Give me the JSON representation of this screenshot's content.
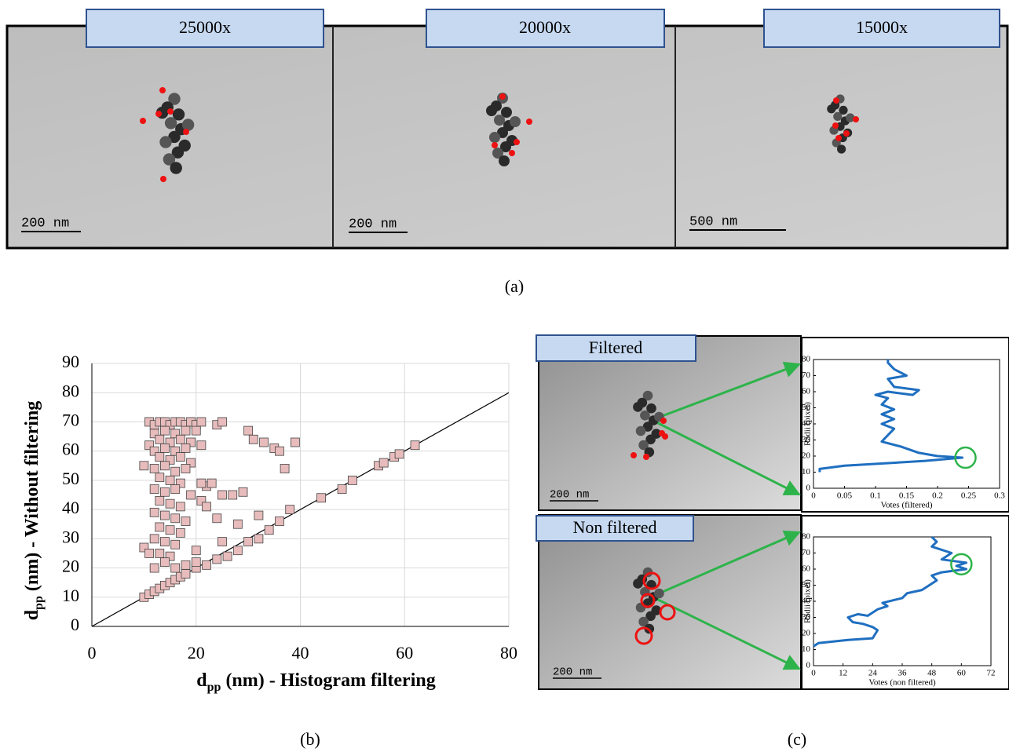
{
  "panel_a": {
    "images": [
      {
        "magnification": "25000x",
        "scale_bar": "200 nm"
      },
      {
        "magnification": "20000x",
        "scale_bar": "200 nm"
      },
      {
        "magnification": "15000x",
        "scale_bar": "500 nm"
      }
    ],
    "caption": "(a)"
  },
  "panel_b": {
    "caption": "(b)"
  },
  "panel_c": {
    "images": [
      {
        "label": "Filtered",
        "scale_bar": "200 nm"
      },
      {
        "label": "Non filtered",
        "scale_bar": "200 nm"
      }
    ],
    "caption": "(c)"
  },
  "chart_data": [
    {
      "type": "scatter",
      "x_label": {
        "symbol": "d",
        "subscript": "pp",
        "text": " (nm) - Histogram filtering"
      },
      "y_label": {
        "symbol": "d",
        "subscript": "pp",
        "text": " (nm) - Without filtering"
      },
      "xlim": [
        0,
        80
      ],
      "ylim": [
        0,
        90
      ],
      "xticks": [
        0,
        20,
        40,
        60,
        80
      ],
      "yticks": [
        0,
        10,
        20,
        30,
        40,
        50,
        60,
        70,
        80,
        90
      ],
      "grid": true,
      "identity_line": true,
      "series": [
        {
          "color": "#e8bcbc",
          "x": [
            10,
            11,
            12,
            13,
            14,
            15,
            16,
            17,
            18,
            20,
            22,
            24,
            26,
            28,
            30,
            32,
            34,
            36,
            38,
            44,
            48,
            50,
            55,
            56,
            58,
            59,
            62,
            30,
            31,
            33,
            35,
            36,
            39,
            37,
            27,
            29,
            25,
            32,
            28,
            21,
            22,
            23,
            22,
            10,
            11,
            24,
            20,
            25,
            11,
            12,
            13,
            14,
            15,
            16,
            17,
            18,
            19,
            20,
            21,
            24,
            25,
            12,
            14,
            16,
            18,
            20,
            13,
            15,
            17,
            19,
            11,
            12,
            14,
            16,
            18,
            21,
            13,
            15,
            17,
            19,
            10,
            12,
            14,
            16,
            18,
            21,
            13,
            15,
            17,
            12,
            14,
            16,
            19,
            13,
            15,
            17,
            12,
            14,
            16,
            18,
            13,
            15,
            17,
            12,
            14,
            16,
            13,
            15,
            14,
            16,
            18,
            12,
            20
          ],
          "values": [
            10,
            11,
            12,
            13,
            14,
            15,
            16,
            17,
            18,
            20,
            21,
            23,
            24,
            26,
            29,
            30,
            33,
            36,
            40,
            44,
            47,
            50,
            55,
            56,
            58,
            59,
            62,
            67,
            64,
            63,
            61,
            60,
            63,
            54,
            45,
            46,
            45,
            38,
            35,
            43,
            48,
            49,
            41,
            27,
            25,
            37,
            26,
            29,
            70,
            69,
            70,
            70,
            69,
            70,
            70,
            69,
            70,
            69,
            70,
            69,
            70,
            66,
            67,
            66,
            67,
            67,
            64,
            63,
            64,
            63,
            62,
            60,
            61,
            60,
            61,
            62,
            58,
            57,
            58,
            56,
            55,
            54,
            55,
            53,
            54,
            49,
            51,
            50,
            49,
            47,
            46,
            47,
            45,
            43,
            42,
            41,
            39,
            38,
            37,
            36,
            34,
            33,
            32,
            30,
            29,
            28,
            25,
            24,
            22,
            20,
            21,
            20,
            22
          ]
        }
      ]
    },
    {
      "type": "line",
      "x_label": "Votes (filtered)",
      "y_label": "Radii (pixel)",
      "xlim": [
        0,
        0.3
      ],
      "ylim": [
        0,
        80
      ],
      "xticks": [
        0,
        0.05,
        0.1,
        0.15,
        0.2,
        0.25,
        0.3
      ],
      "yticks": [
        0,
        10,
        20,
        30,
        40,
        50,
        60,
        70,
        80
      ],
      "series": [
        {
          "color": "#1f6fc0",
          "x": [
            0.01,
            0.01,
            0.05,
            0.18,
            0.24,
            0.2,
            0.17,
            0.14,
            0.11,
            0.12,
            0.13,
            0.11,
            0.13,
            0.11,
            0.13,
            0.11,
            0.12,
            0.1,
            0.12,
            0.16,
            0.17,
            0.13,
            0.12,
            0.15,
            0.13,
            0.12,
            0.12
          ],
          "values": [
            10,
            12,
            14,
            17,
            19,
            20,
            22,
            26,
            29,
            33,
            37,
            40,
            43,
            46,
            49,
            52,
            56,
            58,
            60,
            58,
            61,
            63,
            68,
            70,
            74,
            78,
            80
          ]
        }
      ],
      "highlight": {
        "x": 0.245,
        "y": 19,
        "color": "#2db34a"
      }
    },
    {
      "type": "line",
      "x_label": "Votes (non filtered)",
      "y_label": "Radii (pixel)",
      "xlim": [
        0,
        72
      ],
      "ylim": [
        0,
        80
      ],
      "xticks": [
        0,
        12,
        24,
        36,
        48,
        60,
        72
      ],
      "yticks": [
        0,
        10,
        20,
        30,
        40,
        50,
        60,
        70,
        80
      ],
      "series": [
        {
          "color": "#1f6fc0",
          "x": [
            0,
            2,
            14,
            24,
            26,
            24,
            20,
            16,
            14,
            18,
            22,
            26,
            30,
            28,
            36,
            38,
            44,
            48,
            50,
            48,
            52,
            62,
            58,
            62,
            52,
            56,
            48,
            50,
            48
          ],
          "values": [
            12,
            14,
            16,
            17,
            22,
            24,
            26,
            27,
            30,
            32,
            31,
            35,
            37,
            39,
            42,
            45,
            47,
            51,
            53,
            56,
            58,
            60,
            62,
            64,
            66,
            70,
            74,
            77,
            80
          ]
        }
      ],
      "highlight": {
        "x": 60,
        "y": 63,
        "color": "#2db34a"
      }
    }
  ]
}
